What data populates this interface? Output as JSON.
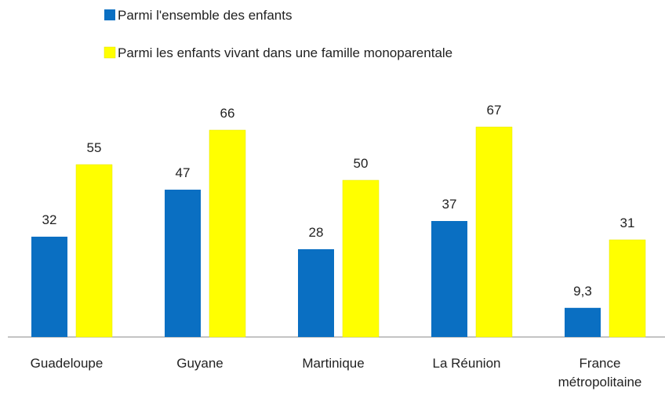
{
  "chart_data": {
    "type": "bar",
    "categories": [
      "Guadeloupe",
      "Guyane",
      "Martinique",
      "La Réunion",
      "France métropolitaine"
    ],
    "series": [
      {
        "name": "Parmi l'ensemble des enfants",
        "color": "#0a6fc2",
        "values": [
          32,
          47,
          28,
          37,
          9.3
        ],
        "value_labels": [
          "32",
          "47",
          "28",
          "37",
          "9,3"
        ]
      },
      {
        "name": "Parmi les enfants vivant dans une famille monoparentale",
        "color": "#ffff00",
        "values": [
          55,
          66,
          50,
          67,
          31
        ],
        "value_labels": [
          "55",
          "66",
          "50",
          "67",
          "31"
        ]
      }
    ],
    "ylim": [
      0,
      80
    ]
  }
}
